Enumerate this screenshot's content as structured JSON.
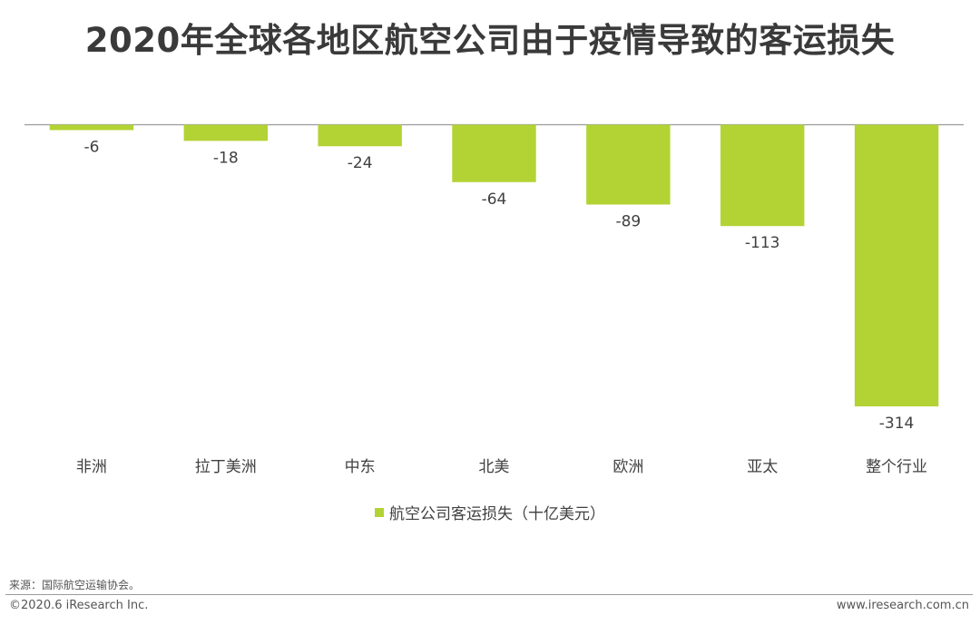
{
  "title": "2020年全球各地区航空公司由于疫情导致的客运损失",
  "colors": {
    "bar": "#b3d334",
    "baseline": "#9a9a9a",
    "label": "#404040"
  },
  "chart_data": {
    "type": "bar",
    "title": "2020年全球各地区航空公司由于疫情导致的客运损失",
    "categories": [
      "非洲",
      "拉丁美洲",
      "中东",
      "北美",
      "欧洲",
      "亚太",
      "整个行业"
    ],
    "series": [
      {
        "name": "航空公司客运损失（十亿美元）",
        "values": [
          -6,
          -18,
          -24,
          -64,
          -89,
          -113,
          -314
        ]
      }
    ],
    "data_labels": [
      "-6",
      "-18",
      "-24",
      "-64",
      "-89",
      "-113",
      "-314"
    ],
    "ylim": [
      -314,
      0
    ],
    "grid": false,
    "legend_position": "bottom"
  },
  "legend": {
    "label": "航空公司客运损失（十亿美元）"
  },
  "footer": {
    "source": "来源：国际航空运输协会。",
    "copyright": "©2020.6 iResearch Inc.",
    "website": "www.iresearch.com.cn"
  }
}
